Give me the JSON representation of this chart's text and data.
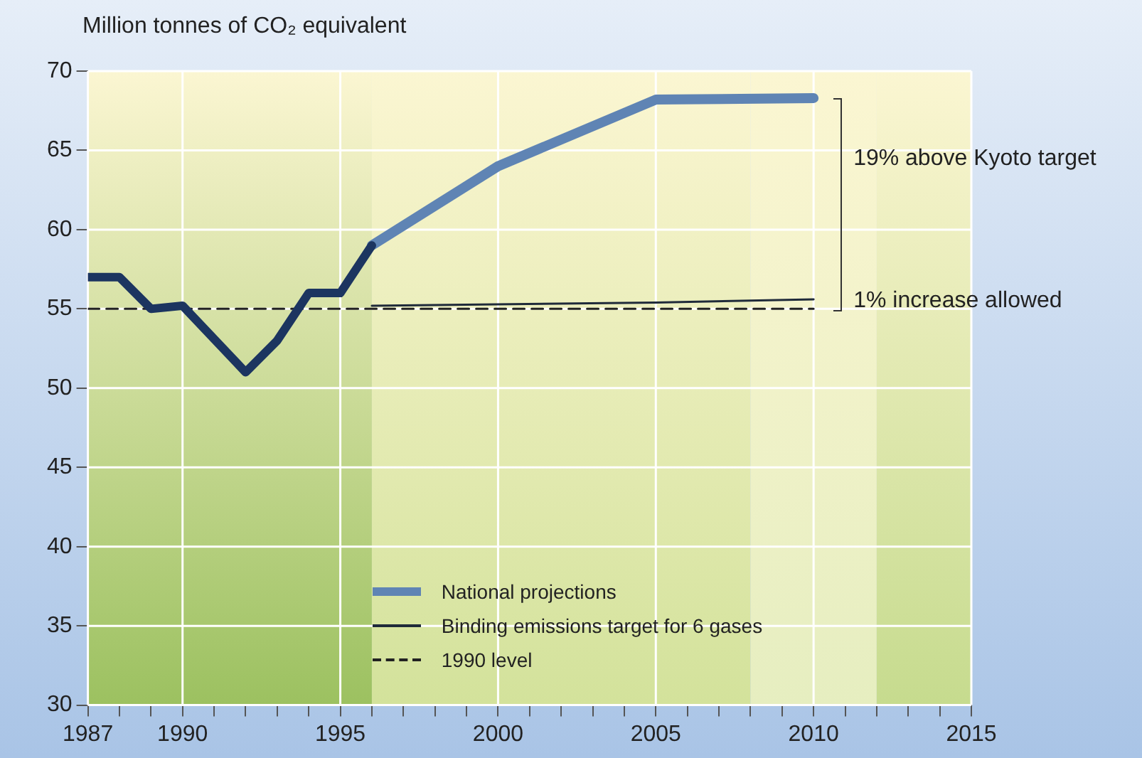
{
  "chart_data": {
    "type": "line",
    "ylabel": "Million tonnes of CO₂ equivalent",
    "xlim": [
      1987,
      2015
    ],
    "ylim": [
      30,
      70
    ],
    "xticks": [
      1987,
      {
        "value": 1988,
        "label": null
      },
      {
        "value": 1989,
        "label": null
      },
      1990,
      {
        "value": 1991,
        "label": null
      },
      {
        "value": 1992,
        "label": null
      },
      {
        "value": 1993,
        "label": null
      },
      {
        "value": 1994,
        "label": null
      },
      1995,
      {
        "value": 1996,
        "label": null
      },
      {
        "value": 1997,
        "label": null
      },
      {
        "value": 1998,
        "label": null
      },
      {
        "value": 1999,
        "label": null
      },
      2000,
      {
        "value": 2001,
        "label": null
      },
      {
        "value": 2002,
        "label": null
      },
      {
        "value": 2003,
        "label": null
      },
      {
        "value": 2004,
        "label": null
      },
      2005,
      {
        "value": 2006,
        "label": null
      },
      {
        "value": 2007,
        "label": null
      },
      {
        "value": 2008,
        "label": null
      },
      {
        "value": 2009,
        "label": null
      },
      2010,
      {
        "value": 2011,
        "label": null
      },
      {
        "value": 2012,
        "label": null
      },
      {
        "value": 2013,
        "label": null
      },
      {
        "value": 2014,
        "label": null
      },
      2015
    ],
    "yticks": [
      30,
      35,
      40,
      45,
      50,
      55,
      60,
      65,
      70
    ],
    "grid": true,
    "legend": "bottom",
    "marker": "none",
    "series": [
      {
        "color": "#1c3560",
        "x": [
          1987,
          1988,
          1989,
          1990,
          1992,
          1993,
          1994,
          1995,
          1996
        ],
        "values": [
          57,
          57,
          55,
          55.2,
          51,
          53,
          56,
          56,
          59
        ]
      },
      {
        "name": "National projections",
        "color": "#5f84b4",
        "x": [
          1996,
          2000,
          2005,
          2010
        ],
        "values": [
          59,
          64,
          68.2,
          68.3
        ]
      },
      {
        "name": "Binding emissions target for 6 gases",
        "color": "#1f2a3a",
        "x": [
          1996,
          2005,
          2010
        ],
        "values": [
          55.2,
          55.4,
          55.6
        ]
      },
      {
        "name": "1990 level",
        "color": "#222222",
        "line_style": "dashed",
        "x": [
          1987,
          2010
        ],
        "values": [
          55,
          55
        ]
      }
    ],
    "bands": [
      {
        "axis": "x",
        "from": 1987,
        "to": 1996,
        "color": "#9cc160"
      },
      {
        "axis": "x",
        "from": 1996,
        "to": 2008,
        "color": "#d3e29b"
      },
      {
        "axis": "x",
        "from": 2008,
        "to": 2012,
        "color": "#e6eec0"
      },
      {
        "axis": "x",
        "from": 2012,
        "to": 2015,
        "color": "#c6db8e"
      }
    ],
    "annotations": [
      "19% above Kyoto target",
      {
        "text": "1% increase allowed",
        "x": 2010,
        "y": 55.4
      }
    ]
  }
}
